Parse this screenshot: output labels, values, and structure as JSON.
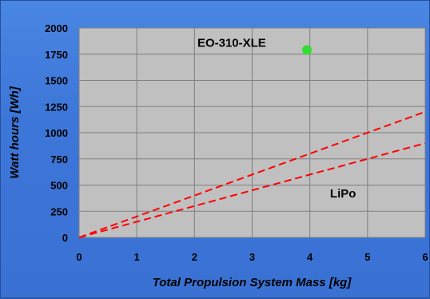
{
  "colors": {
    "background": "#3b74d6",
    "plot_area": "#c0c0c0",
    "grid": "#7f7f7f",
    "series_line": "#ff0000",
    "point": "#33dd33"
  },
  "chart_data": {
    "type": "line",
    "title": "",
    "xlabel": "Total Propulsion System Mass [kg]",
    "ylabel": "Watt hours [Wh]",
    "xlim": [
      0,
      6
    ],
    "ylim": [
      0,
      2000
    ],
    "x_ticks": [
      0,
      1,
      2,
      3,
      4,
      5,
      6
    ],
    "y_ticks": [
      0,
      250,
      500,
      750,
      1000,
      1250,
      1500,
      1750,
      2000
    ],
    "grid": true,
    "series": [
      {
        "style": "dashed",
        "points": [
          [
            0,
            0
          ],
          [
            6,
            1200
          ]
        ]
      },
      {
        "style": "dashed",
        "points": [
          [
            0,
            0
          ],
          [
            6,
            900
          ]
        ]
      }
    ],
    "points": [
      {
        "x": 3.95,
        "y": 1790
      }
    ],
    "annotations": [
      {
        "text": "EO-310-XLE",
        "x": 2.05,
        "y": 1820
      },
      {
        "text": "LiPo",
        "x": 4.35,
        "y": 380
      }
    ]
  }
}
